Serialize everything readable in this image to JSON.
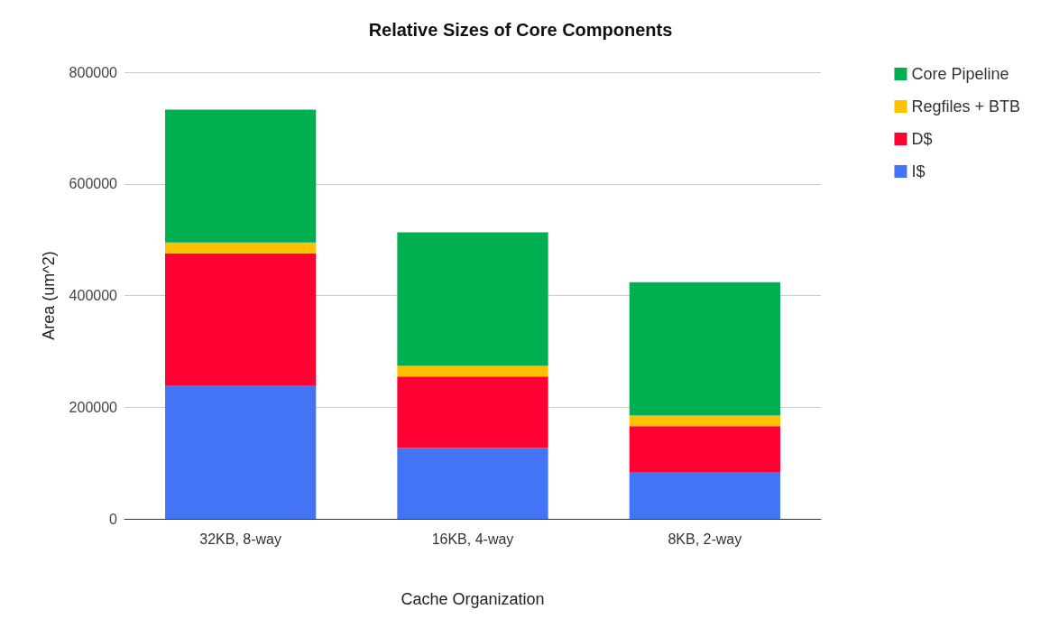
{
  "chart_data": {
    "type": "bar",
    "title": "Relative Sizes of Core Components",
    "xlabel": "Cache Organization",
    "ylabel": "Area (um^2)",
    "categories": [
      "32KB, 8-way",
      "16KB, 4-way",
      "8KB, 2-way"
    ],
    "stacked": true,
    "series": [
      {
        "name": "I$",
        "color": "#4374f5",
        "values": [
          238000,
          127000,
          84000
        ]
      },
      {
        "name": "D$",
        "color": "#ff0033",
        "values": [
          237000,
          128000,
          82000
        ]
      },
      {
        "name": "Regfiles + BTB",
        "color": "#ffc000",
        "values": [
          20000,
          19000,
          19000
        ]
      },
      {
        "name": "Core Pipeline",
        "color": "#00b050",
        "values": [
          238000,
          239000,
          239000
        ]
      }
    ],
    "ylim": [
      0,
      800000
    ],
    "yticks": [
      0,
      200000,
      400000,
      600000,
      800000
    ],
    "grid": "y",
    "legend": "top right"
  }
}
